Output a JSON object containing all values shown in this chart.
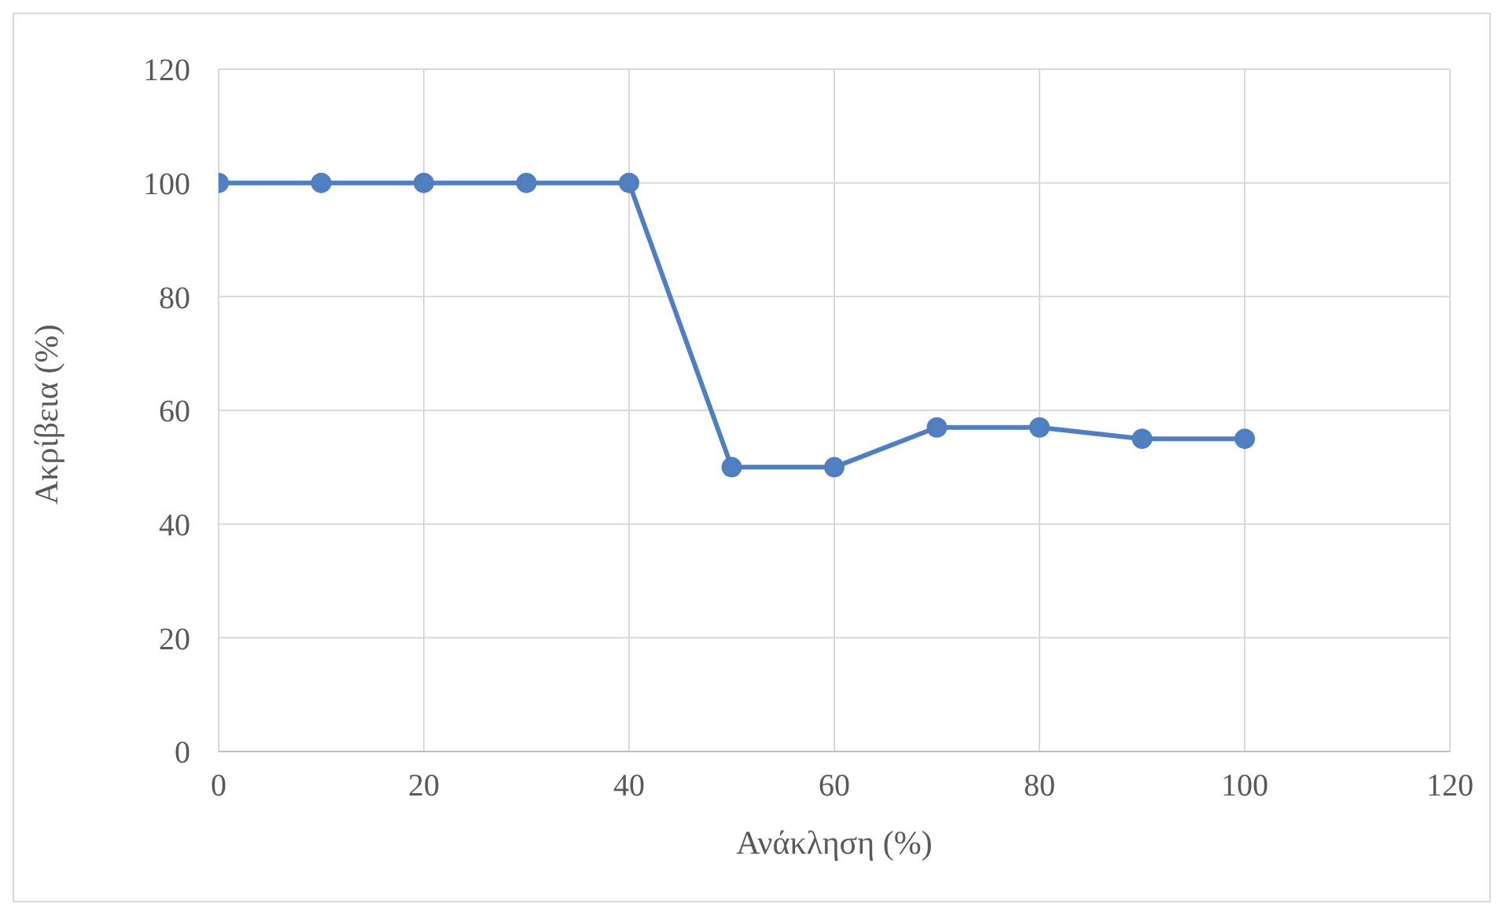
{
  "chart_data": {
    "type": "line",
    "xlabel": "Ανάκληση (%)",
    "ylabel": "Ακρίβεια (%)",
    "x": [
      0,
      10,
      20,
      30,
      40,
      50,
      60,
      70,
      80,
      90,
      100
    ],
    "series": [
      {
        "color": "#4f7fc0",
        "values": [
          100,
          100,
          100,
          100,
          100,
          50,
          50,
          57,
          57,
          55,
          55
        ]
      }
    ],
    "xlim": [
      0,
      120
    ],
    "xticks": [
      0,
      20,
      40,
      60,
      80,
      100,
      120
    ],
    "ylim": [
      0,
      120
    ],
    "yticks": [
      0,
      20,
      40,
      60,
      80,
      100,
      120
    ],
    "grid": true,
    "marker": "circle",
    "line_style": "solid",
    "legend": false
  }
}
